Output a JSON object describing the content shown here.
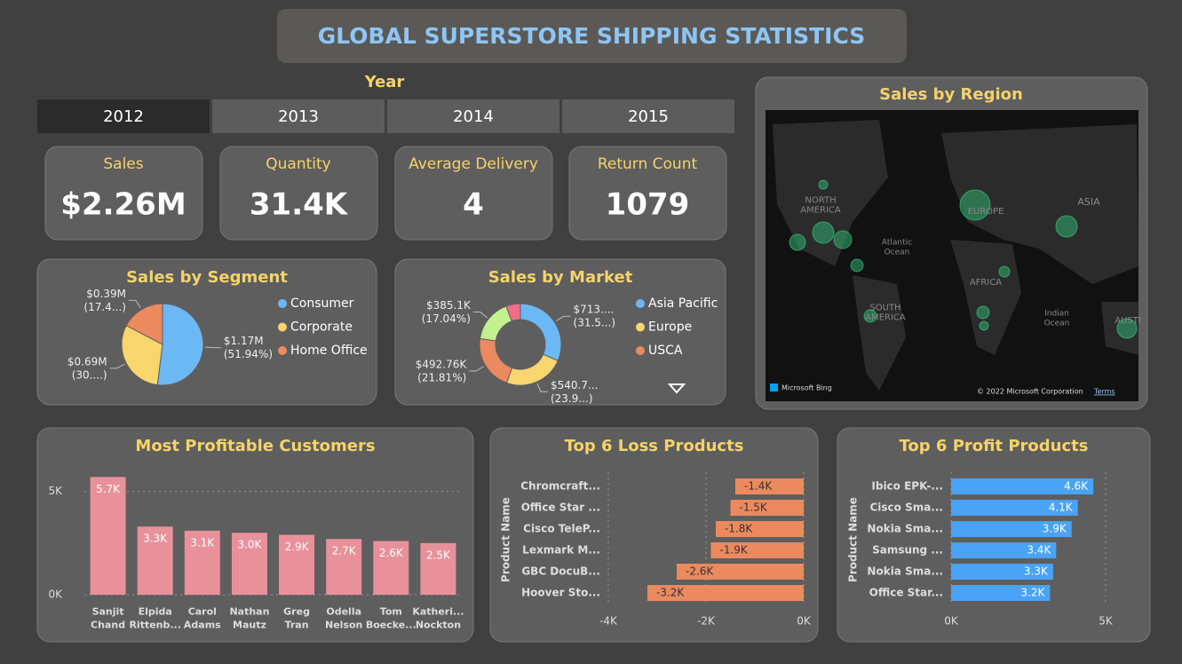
{
  "header": {
    "title": "GLOBAL SUPERSTORE SHIPPING STATISTICS"
  },
  "year_slicer": {
    "title": "Year",
    "options": [
      "2012",
      "2013",
      "2014",
      "2015"
    ],
    "selected_index": 0
  },
  "kpis": [
    {
      "label": "Sales",
      "value": "$2.26M"
    },
    {
      "label": "Quantity",
      "value": "31.4K"
    },
    {
      "label": "Average Delivery",
      "value": "4"
    },
    {
      "label": "Return Count",
      "value": "1079"
    }
  ],
  "map": {
    "title": "Sales by Region",
    "labels": [
      "NORTH AMERICA",
      "EUROPE",
      "ASIA",
      "Atlantic Ocean",
      "AFRICA",
      "SOUTH AMERICA",
      "Indian Ocean",
      "AUSTI"
    ],
    "attribution": [
      "Microsoft Bing",
      "© 2022 Microsoft Corporation",
      "Terms"
    ]
  },
  "chart_data": [
    {
      "type": "pie",
      "title": "Sales by Segment",
      "categories": [
        "Consumer",
        "Corporate",
        "Home Office"
      ],
      "values": [
        1170000,
        690000,
        390000
      ],
      "value_labels": [
        "$1.17M (51.94%)",
        "$0.69M (30....)",
        "$0.39M (17.4...)"
      ],
      "colors": [
        "#6cb8f5",
        "#f9d56e",
        "#ea8a5e"
      ]
    },
    {
      "type": "donut",
      "title": "Sales by Market",
      "categories": [
        "Asia Pacific",
        "Europe",
        "USCA",
        null,
        null
      ],
      "values": [
        713000,
        540700,
        492760,
        385100,
        128000
      ],
      "value_labels": [
        "$713.... (31.5...)",
        "$540.7... (23.9...)",
        "$492.76K (21.81%)",
        "$385.1K (17.04%)",
        null
      ],
      "colors": [
        "#6cb8f5",
        "#f9d56e",
        "#ea8a5e",
        "#c4f08e",
        "#f06e8a"
      ]
    },
    {
      "type": "bar",
      "title": "Most Profitable Customers",
      "categories": [
        "Sanjit Chand",
        "Elpida Rittenb...",
        "Carol Adams",
        "Nathan Mautz",
        "Greg Tran",
        "Odella Nelson",
        "Tom Boecke...",
        "Katheri... Nockton"
      ],
      "values": [
        5700,
        3300,
        3100,
        3000,
        2900,
        2700,
        2600,
        2500
      ],
      "value_labels": [
        "5.7K",
        "3.3K",
        "3.1K",
        "3.0K",
        "2.9K",
        "2.7K",
        "2.6K",
        "2.5K"
      ],
      "color": "#e8919a",
      "ylim": [
        0,
        5800
      ],
      "yticks": [
        {
          "value": 0,
          "label": "0K"
        },
        {
          "value": 5000,
          "label": "5K"
        }
      ],
      "grid": true
    },
    {
      "type": "hbar",
      "title": "Top 6 Loss Products",
      "y_label": "Product Name",
      "categories": [
        "Chromcraft...",
        "Office Star ...",
        "Cisco TeleP...",
        "Lexmark M...",
        "GBC DocuB...",
        "Hoover Sto..."
      ],
      "values": [
        -1400,
        -1500,
        -1800,
        -1900,
        -2600,
        -3200
      ],
      "value_labels": [
        "-1.4K",
        "-1.5K",
        "-1.8K",
        "-1.9K",
        "-2.6K",
        "-3.2K"
      ],
      "color": "#ea8a5e",
      "xlim": [
        -4000,
        0
      ],
      "xticks": [
        {
          "value": -4000,
          "label": "-4K"
        },
        {
          "value": -2000,
          "label": "-2K"
        },
        {
          "value": 0,
          "label": "0K"
        }
      ],
      "grid": true
    },
    {
      "type": "hbar",
      "title": "Top 6 Profit Products",
      "y_label": "Product Name",
      "categories": [
        "Ibico EPK-...",
        "Cisco Sma...",
        "Nokia Sma...",
        "Samsung ...",
        "Nokia Sma...",
        "Office Star..."
      ],
      "values": [
        4600,
        4100,
        3900,
        3400,
        3300,
        3200
      ],
      "value_labels": [
        "4.6K",
        "4.1K",
        "3.9K",
        "3.4K",
        "3.3K",
        "3.2K"
      ],
      "color": "#4aa3f5",
      "xlim": [
        0,
        5000
      ],
      "xticks": [
        {
          "value": 0,
          "label": "0K"
        },
        {
          "value": 5000,
          "label": "5K"
        }
      ],
      "grid": true
    }
  ]
}
